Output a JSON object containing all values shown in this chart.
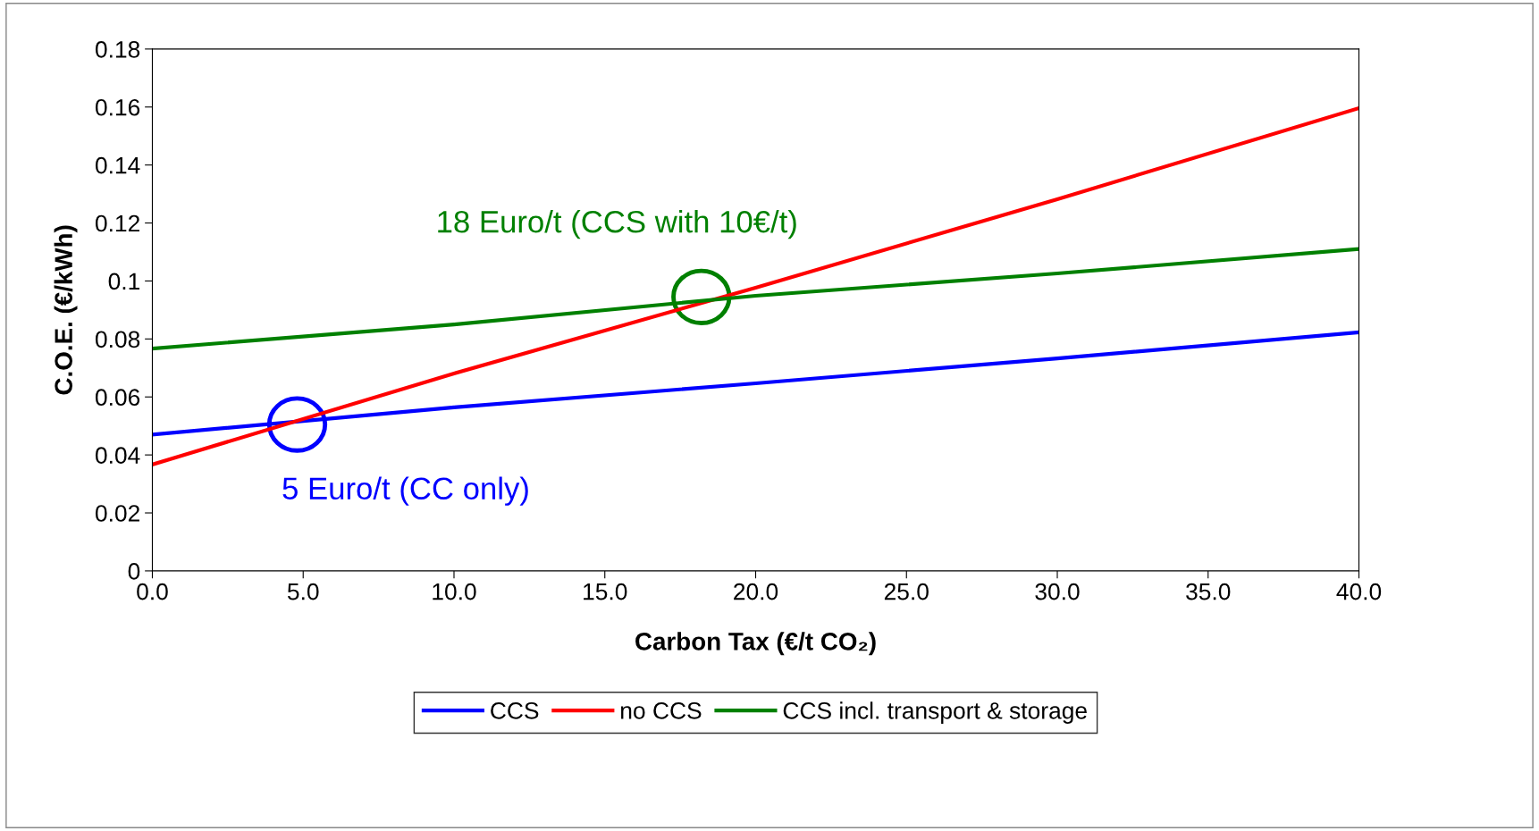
{
  "chart_data": {
    "type": "line",
    "xlabel": "Carbon Tax (€/t CO₂)",
    "ylabel": "C.O.E. (€/kWh)",
    "x": [
      0,
      10,
      20,
      30,
      40
    ],
    "series": [
      {
        "name": "CCS",
        "color": "#0000ff",
        "values": [
          0.047,
          0.0564,
          0.0647,
          0.0733,
          0.0823
        ]
      },
      {
        "name": "no CCS",
        "color": "#ff0000",
        "values": [
          0.0367,
          0.0681,
          0.0977,
          0.1282,
          0.1596
        ]
      },
      {
        "name": "CCS incl. transport & storage",
        "color": "#008000",
        "values": [
          0.0767,
          0.085,
          0.0949,
          0.1026,
          0.111
        ]
      }
    ],
    "annotations": [
      {
        "text": "5 Euro/t (CC only)",
        "x": 4.8,
        "y": 0.0505
      },
      {
        "text": "18 Euro/t (CCS with 10€/t)",
        "x": 18.2,
        "y": 0.0945
      }
    ],
    "xlim": [
      0,
      40
    ],
    "xticks": [
      {
        "value": 0,
        "label": "0.0"
      },
      {
        "value": 5,
        "label": "5.0"
      },
      {
        "value": 10,
        "label": "10.0"
      },
      {
        "value": 15,
        "label": "15.0"
      },
      {
        "value": 20,
        "label": "20.0"
      },
      {
        "value": 25,
        "label": "25.0"
      },
      {
        "value": 30,
        "label": "30.0"
      },
      {
        "value": 35,
        "label": "35.0"
      },
      {
        "value": 40,
        "label": "40.0"
      }
    ],
    "ylim": [
      0,
      0.18
    ],
    "yticks": [
      0,
      0.02,
      0.04,
      0.06,
      0.08,
      0.1,
      0.12,
      0.14,
      0.16,
      0.18
    ],
    "grid": false,
    "legend": "bottom",
    "marker": "none",
    "line_style": "solid"
  }
}
